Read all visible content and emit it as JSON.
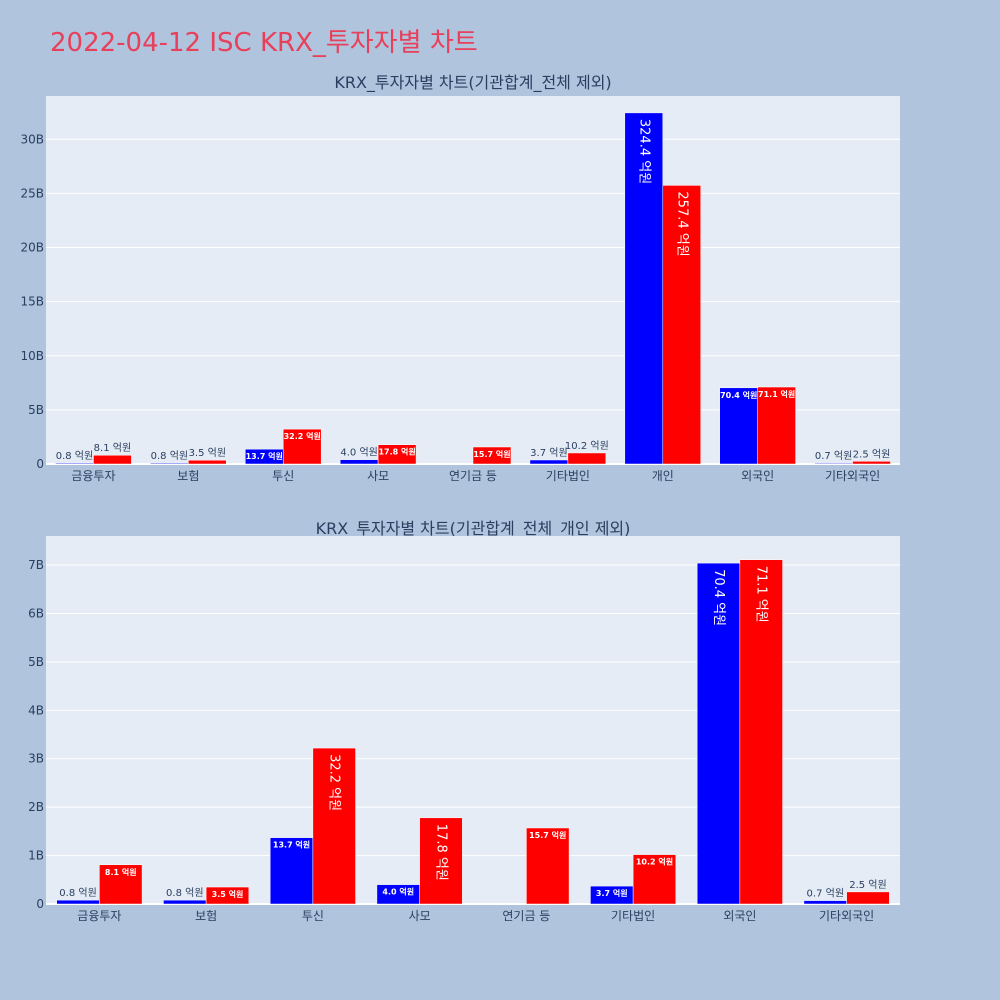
{
  "page": {
    "title": "2022-04-12 ISC KRX_투자자별 차트"
  },
  "colors": {
    "background": "#b0c4de",
    "plot_bg": "#e5ecf6",
    "grid": "#ffffff",
    "buy": "#0000ff",
    "sell": "#ff0000",
    "title": "#e8405a",
    "text": "#2a3f5f"
  },
  "chart_data": [
    {
      "type": "bar",
      "title": "KRX_투자자별 차트(기관합계_전체 제외)",
      "categories": [
        "금융투자",
        "보험",
        "투신",
        "사모",
        "연기금 등",
        "기타법인",
        "개인",
        "외국인",
        "기타외국인"
      ],
      "series": [
        {
          "values": [
            0.08,
            0.08,
            1.37,
            0.4,
            0,
            0.37,
            32.44,
            7.04,
            0.07
          ],
          "labels": [
            "0.8 억원",
            "0.8 억원",
            "13.7 억원",
            "4.0 억원",
            "",
            "3.7 억원",
            "324.4 억원",
            "70.4 억원",
            "0.7 억원"
          ]
        },
        {
          "values": [
            0.81,
            0.35,
            3.22,
            1.78,
            1.57,
            1.02,
            25.74,
            7.11,
            0.25
          ],
          "labels": [
            "8.1 억원",
            "3.5 억원",
            "32.2 억원",
            "17.8 억원",
            "15.7 억원",
            "10.2 억원",
            "257.4 억원",
            "71.1 억원",
            "2.5 억원"
          ]
        }
      ],
      "yticks": [
        "0",
        "5B",
        "10B",
        "15B",
        "20B",
        "25B",
        "30B"
      ],
      "ylim": [
        0,
        34
      ],
      "grid": true
    },
    {
      "type": "bar",
      "title": "KRX_투자자별 차트(기관합계_전체_개인 제외)",
      "categories": [
        "금융투자",
        "보험",
        "투신",
        "사모",
        "연기금 등",
        "기타법인",
        "외국인",
        "기타외국인"
      ],
      "series": [
        {
          "values": [
            0.08,
            0.08,
            1.37,
            0.4,
            0,
            0.37,
            7.04,
            0.07
          ],
          "labels": [
            "0.8 억원",
            "0.8 억원",
            "13.7 억원",
            "4.0 억원",
            "",
            "3.7 억원",
            "70.4 억원",
            "0.7 억원"
          ]
        },
        {
          "values": [
            0.81,
            0.35,
            3.22,
            1.78,
            1.57,
            1.02,
            7.11,
            0.25
          ],
          "labels": [
            "8.1 억원",
            "3.5 억원",
            "32.2 억원",
            "17.8 억원",
            "15.7 억원",
            "10.2 억원",
            "71.1 억원",
            "2.5 억원"
          ]
        }
      ],
      "yticks": [
        "0",
        "1B",
        "2B",
        "3B",
        "4B",
        "5B",
        "6B",
        "7B"
      ],
      "ylim": [
        0,
        7.6
      ],
      "grid": true
    }
  ]
}
